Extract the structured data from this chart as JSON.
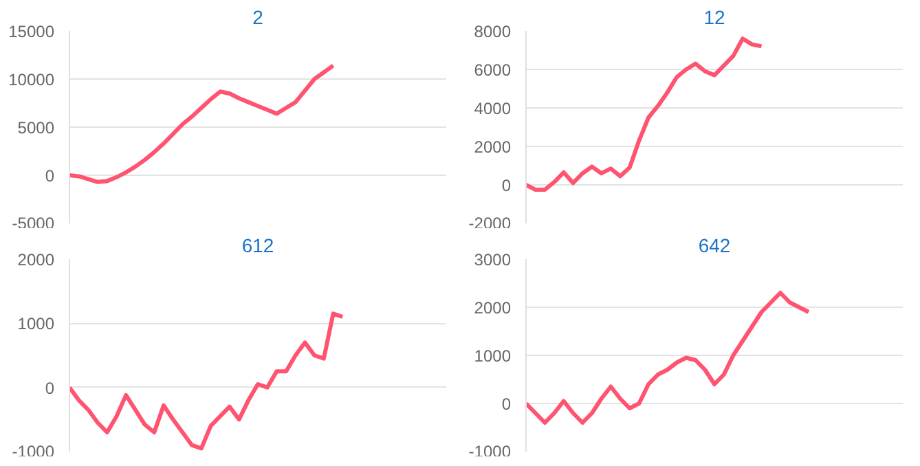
{
  "chart_data": [
    {
      "type": "line",
      "title": "2",
      "grid": "y",
      "ylim": [
        -5000,
        15000
      ],
      "yticks": [
        -5000,
        0,
        5000,
        10000,
        15000
      ],
      "categories": [
        null,
        null,
        null,
        null,
        null,
        null,
        null,
        null,
        null,
        null,
        null,
        null,
        null,
        null,
        null,
        null,
        null,
        null,
        null,
        null,
        null,
        null,
        null,
        null,
        null,
        null,
        null,
        null,
        null,
        null,
        null,
        null,
        null,
        null,
        null,
        null,
        null,
        null,
        null,
        null,
        null
      ],
      "series": [
        {
          "color": "#ff5470",
          "values": [
            0,
            -100,
            -400,
            -700,
            -600,
            -200,
            300,
            900,
            1600,
            2400,
            3300,
            4300,
            5300,
            6100,
            7000,
            7900,
            8700,
            8500,
            8000,
            7600,
            7200,
            6800,
            6400,
            7000,
            7600,
            8800,
            10000,
            10700,
            11400,
            null,
            null,
            null,
            null,
            null,
            null,
            null,
            null,
            null,
            null,
            null,
            null
          ]
        }
      ]
    },
    {
      "type": "line",
      "title": "12",
      "grid": "y",
      "ylim": [
        -2000,
        8000
      ],
      "yticks": [
        -2000,
        0,
        2000,
        4000,
        6000,
        8000
      ],
      "categories": [
        null,
        null,
        null,
        null,
        null,
        null,
        null,
        null,
        null,
        null,
        null,
        null,
        null,
        null,
        null,
        null,
        null,
        null,
        null,
        null,
        null,
        null,
        null,
        null,
        null,
        null,
        null,
        null,
        null,
        null,
        null,
        null,
        null,
        null,
        null,
        null,
        null,
        null,
        null,
        null,
        null
      ],
      "series": [
        {
          "color": "#ff5470",
          "values": [
            0,
            -250,
            -250,
            150,
            650,
            100,
            600,
            950,
            600,
            850,
            450,
            900,
            2300,
            3500,
            4100,
            4800,
            5600,
            6000,
            6300,
            5900,
            5700,
            6200,
            6700,
            7600,
            7300,
            7200,
            null,
            null,
            null,
            null,
            null,
            null,
            null,
            null,
            null,
            null,
            null,
            null,
            null,
            null,
            null
          ]
        }
      ]
    },
    {
      "type": "line",
      "title": "612",
      "grid": "y",
      "ylim": [
        -1000,
        2000
      ],
      "yticks": [
        -1000,
        0,
        1000,
        2000
      ],
      "categories": [
        null,
        null,
        null,
        null,
        null,
        null,
        null,
        null,
        null,
        null,
        null,
        null,
        null,
        null,
        null,
        null,
        null,
        null,
        null,
        null,
        null,
        null,
        null,
        null,
        null,
        null,
        null,
        null,
        null,
        null,
        null,
        null,
        null,
        null,
        null,
        null,
        null,
        null,
        null,
        null,
        null
      ],
      "series": [
        {
          "color": "#ff5470",
          "values": [
            0,
            -200,
            -350,
            -550,
            -700,
            -450,
            -120,
            -350,
            -580,
            -700,
            -280,
            -500,
            -700,
            -900,
            -950,
            -600,
            -450,
            -300,
            -500,
            -200,
            50,
            0,
            250,
            250,
            500,
            700,
            500,
            450,
            1150,
            1100,
            null,
            null,
            null,
            null,
            null,
            null,
            null,
            null,
            null,
            null,
            null
          ]
        }
      ]
    },
    {
      "type": "line",
      "title": "642",
      "grid": "y",
      "ylim": [
        -1000,
        3000
      ],
      "yticks": [
        -1000,
        0,
        1000,
        2000,
        3000
      ],
      "categories": [
        null,
        null,
        null,
        null,
        null,
        null,
        null,
        null,
        null,
        null,
        null,
        null,
        null,
        null,
        null,
        null,
        null,
        null,
        null,
        null,
        null,
        null,
        null,
        null,
        null,
        null,
        null,
        null,
        null,
        null,
        null,
        null,
        null,
        null,
        null,
        null,
        null,
        null,
        null,
        null,
        null
      ],
      "series": [
        {
          "color": "#ff5470",
          "values": [
            0,
            -200,
            -400,
            -200,
            50,
            -200,
            -400,
            -200,
            100,
            350,
            100,
            -100,
            0,
            400,
            600,
            700,
            850,
            950,
            900,
            700,
            400,
            600,
            1000,
            1300,
            1600,
            1900,
            2100,
            2300,
            2100,
            2000,
            1900,
            null,
            null,
            null,
            null,
            null,
            null,
            null,
            null,
            null,
            null
          ]
        }
      ]
    }
  ]
}
